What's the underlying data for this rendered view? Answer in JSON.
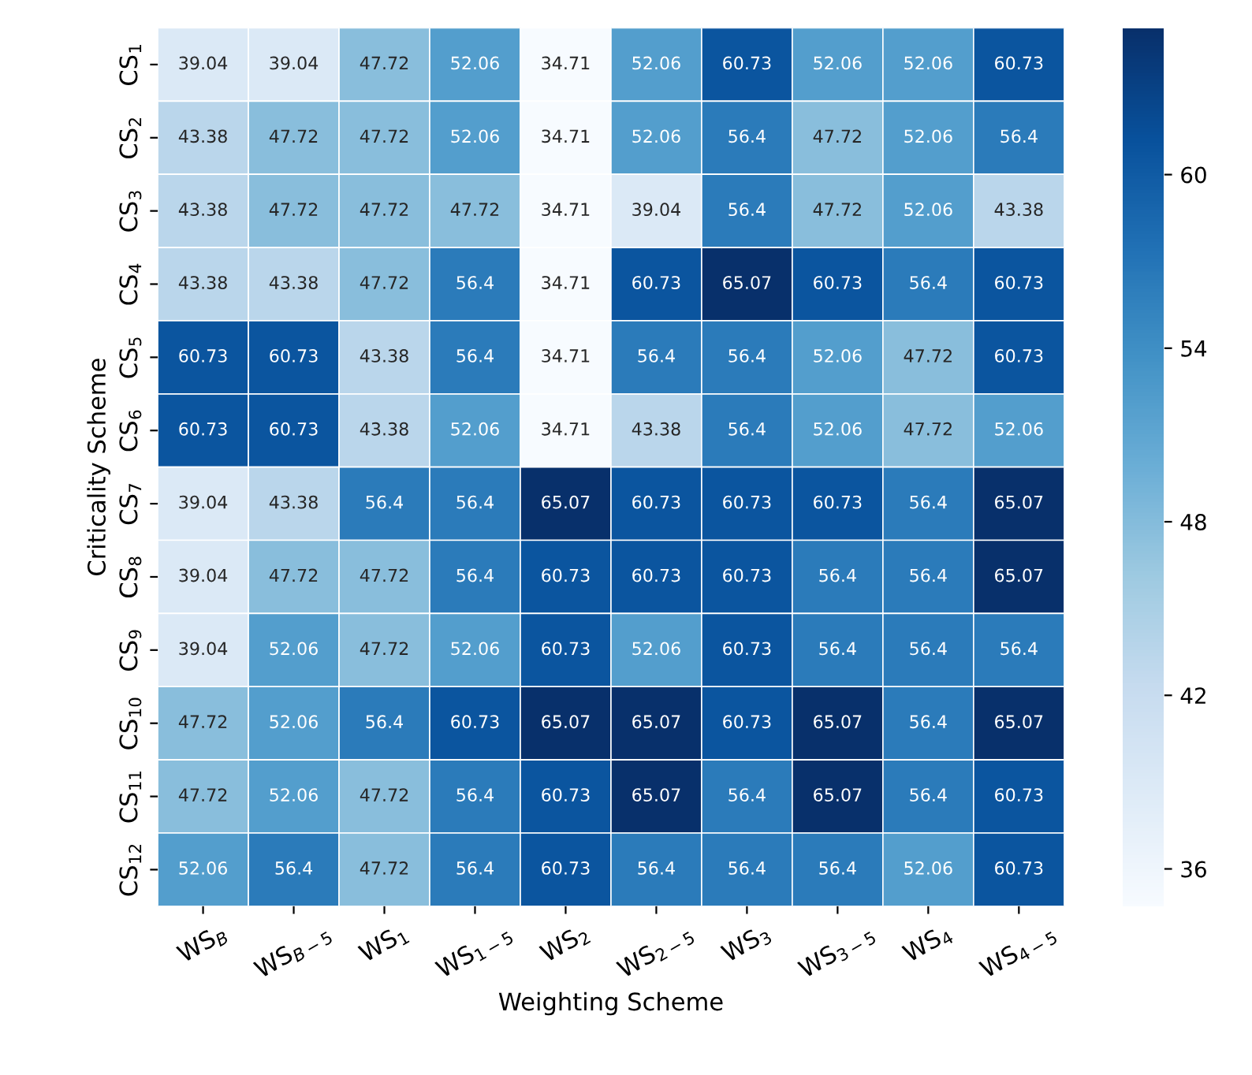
{
  "chart_data": {
    "type": "heatmap",
    "xlabel": "Weighting Scheme",
    "ylabel": "Criticality Scheme",
    "categories": [
      "WS$_{B}$",
      "WS$_{B−5}$",
      "WS$_{1}$",
      "WS$_{1−5}$",
      "WS$_{2}$",
      "WS$_{2−5}$",
      "WS$_{3}$",
      "WS$_{3−5}$",
      "WS$_{4}$",
      "WS$_{4−5}$"
    ],
    "y_categories": [
      "CS$_{1}$",
      "CS$_{2}$",
      "CS$_{3}$",
      "CS$_{4}$",
      "CS$_{5}$",
      "CS$_{6}$",
      "CS$_{7}$",
      "CS$_{8}$",
      "CS$_{9}$",
      "CS$_{10}$",
      "CS$_{11}$",
      "CS$_{12}$"
    ],
    "cells": [
      [
        39.04,
        39.04,
        47.72,
        52.06,
        34.71,
        52.06,
        60.73,
        52.06,
        52.06,
        60.73
      ],
      [
        43.38,
        47.72,
        47.72,
        52.06,
        34.71,
        52.06,
        56.4,
        47.72,
        52.06,
        56.4
      ],
      [
        43.38,
        47.72,
        47.72,
        47.72,
        34.71,
        39.04,
        56.4,
        47.72,
        52.06,
        43.38
      ],
      [
        43.38,
        43.38,
        47.72,
        56.4,
        34.71,
        60.73,
        65.07,
        60.73,
        56.4,
        60.73
      ],
      [
        60.73,
        60.73,
        43.38,
        56.4,
        34.71,
        56.4,
        56.4,
        52.06,
        47.72,
        60.73
      ],
      [
        60.73,
        60.73,
        43.38,
        52.06,
        34.71,
        43.38,
        56.4,
        52.06,
        47.72,
        52.06
      ],
      [
        39.04,
        43.38,
        56.4,
        56.4,
        65.07,
        60.73,
        60.73,
        60.73,
        56.4,
        65.07
      ],
      [
        39.04,
        47.72,
        47.72,
        56.4,
        60.73,
        60.73,
        60.73,
        56.4,
        56.4,
        65.07
      ],
      [
        39.04,
        52.06,
        47.72,
        52.06,
        60.73,
        52.06,
        60.73,
        56.4,
        56.4,
        56.4
      ],
      [
        47.72,
        52.06,
        56.4,
        60.73,
        65.07,
        65.07,
        60.73,
        65.07,
        56.4,
        65.07
      ],
      [
        47.72,
        52.06,
        47.72,
        56.4,
        60.73,
        65.07,
        56.4,
        65.07,
        56.4,
        60.73
      ],
      [
        52.06,
        56.4,
        47.72,
        56.4,
        60.73,
        56.4,
        56.4,
        56.4,
        52.06,
        60.73
      ]
    ],
    "clim": [
      34.71,
      65.07
    ],
    "cticks": [
      36,
      42,
      48,
      54,
      60
    ],
    "data_labels": true
  }
}
